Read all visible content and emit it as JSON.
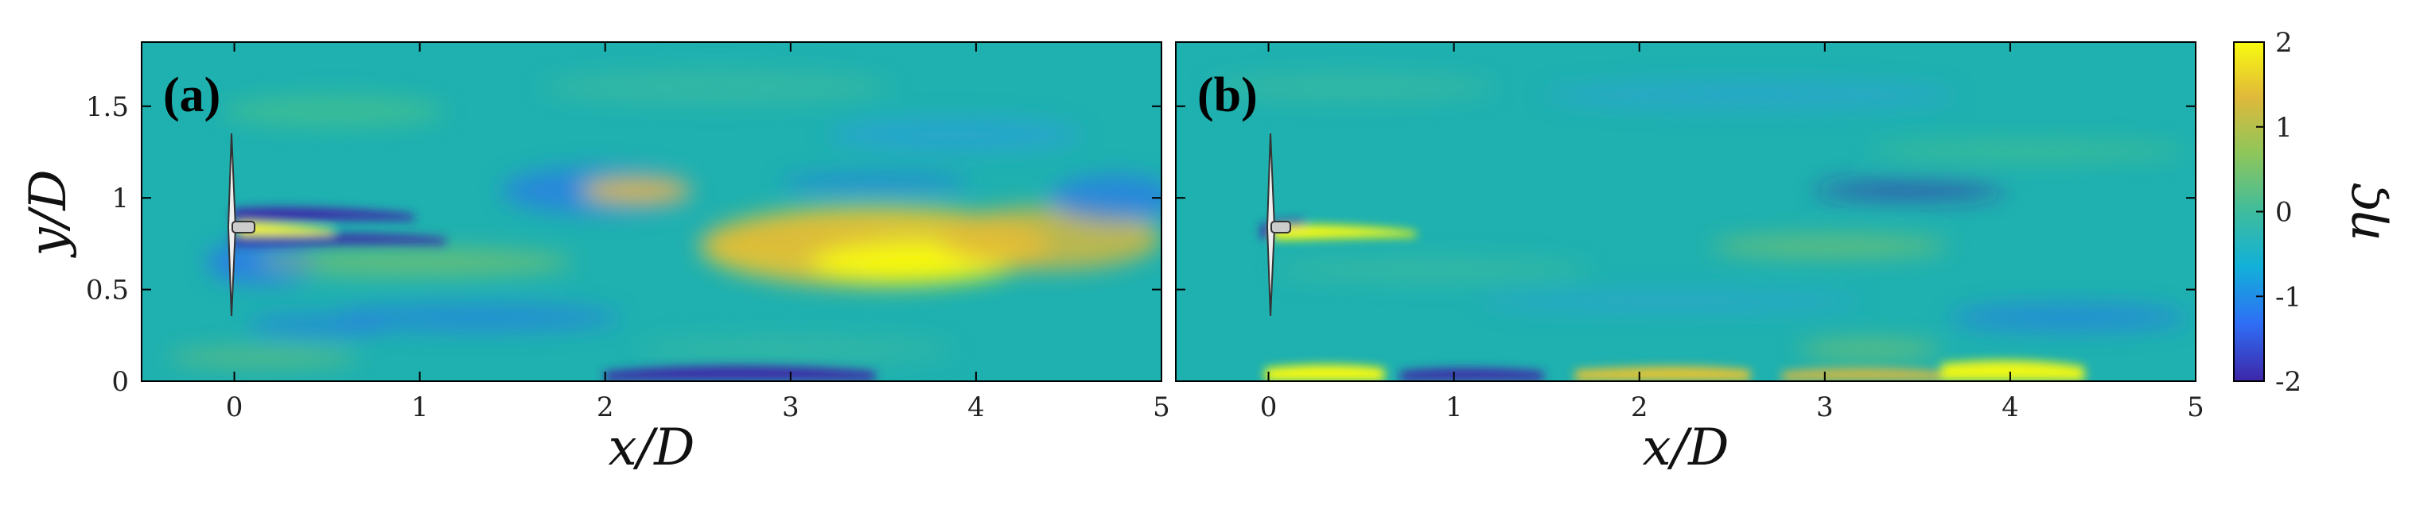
{
  "chart_data": [
    {
      "type": "heatmap",
      "panel_label": "(a)",
      "xlabel": "x/D",
      "ylabel": "y/D",
      "xlim": [
        -0.5,
        5
      ],
      "ylim": [
        0,
        1.85
      ],
      "xticks": [
        0,
        1,
        2,
        3,
        4,
        5
      ],
      "xtick_labels": [
        "0",
        "1",
        "2",
        "3",
        "4",
        "5"
      ],
      "yticks": [
        0,
        0.5,
        1,
        1.5
      ],
      "ytick_labels": [
        "0",
        "0.5",
        "1",
        "1.5"
      ]
    },
    {
      "type": "heatmap",
      "panel_label": "(b)",
      "xlabel": "x/D",
      "ylabel": "",
      "xlim": [
        -0.5,
        5
      ],
      "ylim": [
        0,
        1.85
      ],
      "xticks": [
        0,
        1,
        2,
        3,
        4,
        5
      ],
      "xtick_labels": [
        "0",
        "1",
        "2",
        "3",
        "4",
        "5"
      ],
      "yticks": [
        0,
        0.5,
        1,
        1.5
      ]
    }
  ],
  "colorbar": {
    "label": "ης",
    "clim": [
      -2,
      2
    ],
    "ticks": [
      2,
      1,
      0,
      -1,
      -2
    ],
    "tick_labels": [
      "2",
      "1",
      "0",
      "-1",
      "-2"
    ],
    "colormap": "parula",
    "colors": [
      "#3e26a8",
      "#2e6ef5",
      "#12b1d8",
      "#3fbc9d",
      "#8dc65b",
      "#e0b93a",
      "#f9fb0e"
    ]
  },
  "colors": {
    "axis": "#000000",
    "turbine_blade": "#333333",
    "nacelle": "#cccccc"
  }
}
